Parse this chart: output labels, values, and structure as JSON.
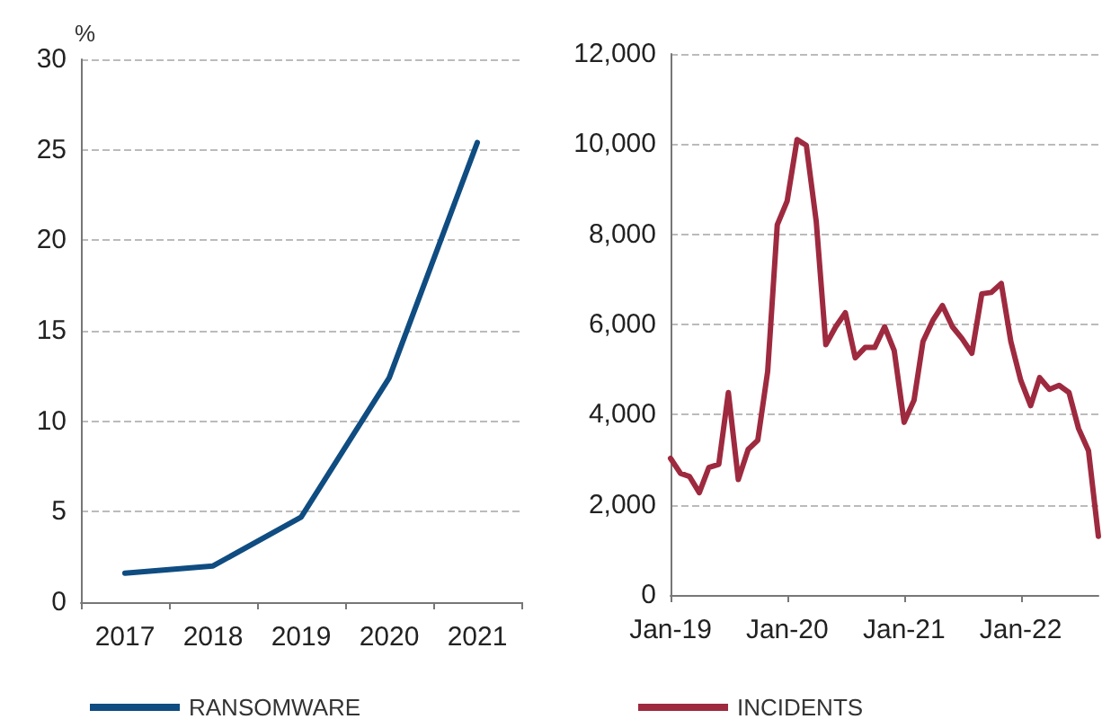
{
  "chart_data": [
    {
      "type": "line",
      "ylabel": "%",
      "categories": [
        "2017",
        "2018",
        "2019",
        "2020",
        "2021"
      ],
      "series": [
        {
          "name": "RANSOMWARE",
          "color": "#0f4c81",
          "values": [
            1.6,
            2.0,
            4.7,
            12.4,
            25.4
          ]
        }
      ],
      "ylim": [
        0,
        30
      ],
      "yticks": [
        0,
        5,
        10,
        15,
        20,
        25,
        30
      ],
      "grid": "y",
      "legend": "bottom",
      "marker": "none",
      "line_style": "solid"
    },
    {
      "type": "line",
      "x": [
        "2019-01",
        "2019-02",
        "2019-03",
        "2019-04",
        "2019-05",
        "2019-06",
        "2019-07",
        "2019-08",
        "2019-09",
        "2019-10",
        "2019-11",
        "2019-12",
        "2020-01",
        "2020-02",
        "2020-03",
        "2020-04",
        "2020-05",
        "2020-06",
        "2020-07",
        "2020-08",
        "2020-09",
        "2020-10",
        "2020-11",
        "2020-12",
        "2021-01",
        "2021-02",
        "2021-03",
        "2021-04",
        "2021-05",
        "2021-06",
        "2021-07",
        "2021-08",
        "2021-09",
        "2021-10",
        "2021-11",
        "2021-12",
        "2022-01",
        "2022-02",
        "2022-03",
        "2022-04",
        "2022-05",
        "2022-06",
        "2022-07",
        "2022-08",
        "2022-09"
      ],
      "series": [
        {
          "name": "INCIDENTS",
          "color": "#9e2a3f",
          "values": [
            3030,
            2700,
            2630,
            2270,
            2830,
            2900,
            4490,
            2560,
            3230,
            3430,
            4960,
            8210,
            8740,
            10100,
            9970,
            8280,
            5550,
            5950,
            6260,
            5260,
            5490,
            5490,
            5950,
            5420,
            3830,
            4320,
            5620,
            6090,
            6420,
            5950,
            5690,
            5360,
            6680,
            6710,
            6910,
            5620,
            4760,
            4200,
            4820,
            4560,
            4650,
            4490,
            3690,
            3200,
            1300
          ]
        }
      ],
      "xlim": [
        "2019-01",
        "2022-09"
      ],
      "xticks": [
        {
          "value": "2019-01",
          "label": "Jan-19"
        },
        {
          "value": "2020-01",
          "label": "Jan-20"
        },
        {
          "value": "2021-01",
          "label": "Jan-21"
        },
        {
          "value": "2022-01",
          "label": "Jan-22"
        }
      ],
      "ylim": [
        0,
        12000
      ],
      "yticks": [
        0,
        {
          "value": 2000,
          "label": "2,000"
        },
        {
          "value": 4000,
          "label": "4,000"
        },
        {
          "value": 6000,
          "label": "6,000"
        },
        {
          "value": 8000,
          "label": "8,000"
        },
        {
          "value": 10000,
          "label": "10,000"
        },
        {
          "value": 12000,
          "label": "12,000"
        }
      ],
      "grid": "y",
      "legend": "bottom",
      "marker": "none",
      "line_style": "solid"
    }
  ]
}
